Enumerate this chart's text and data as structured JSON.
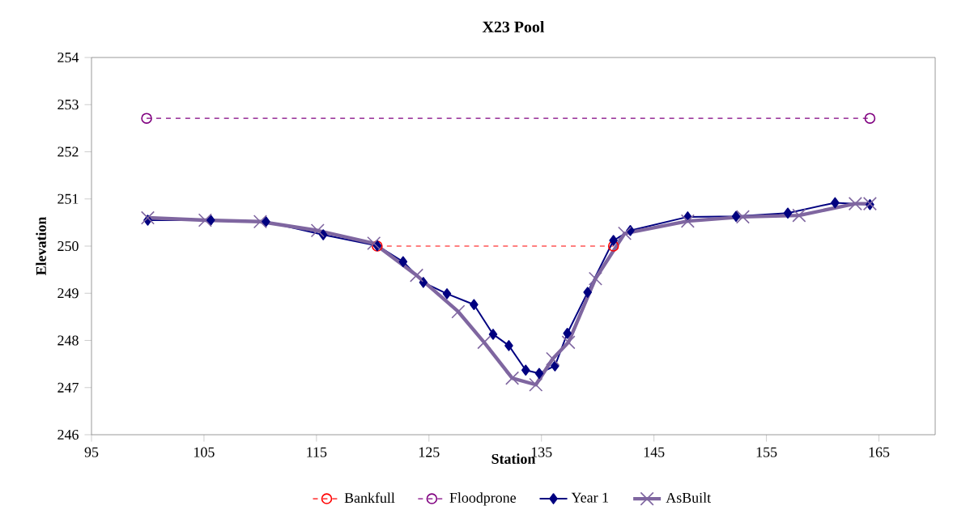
{
  "chart_data": {
    "type": "line",
    "title": "X23 Pool",
    "xlabel": "Station",
    "ylabel": "Elevation",
    "xlim": [
      95,
      170
    ],
    "ylim": [
      246,
      254
    ],
    "xticks": [
      95,
      105,
      115,
      125,
      135,
      145,
      155,
      165
    ],
    "yticks": [
      246,
      247,
      248,
      249,
      250,
      251,
      252,
      253,
      254
    ],
    "grid": false,
    "legend": "bottom",
    "series": [
      {
        "name": "Bankfull",
        "color": "#ff0000",
        "marker": "circle",
        "line_style": "dashed",
        "x": [
          120.4,
          141.4
        ],
        "values": [
          250.0,
          250.0
        ]
      },
      {
        "name": "Floodprone",
        "color": "#800080",
        "marker": "circle",
        "line_style": "dashed",
        "x": [
          99.9,
          164.2
        ],
        "values": [
          252.71,
          252.71
        ]
      },
      {
        "name": "Year 1",
        "color": "#000080",
        "marker": "diamond",
        "line_style": "solid",
        "x": [
          100.0,
          105.6,
          110.5,
          115.6,
          120.4,
          122.7,
          124.5,
          126.6,
          129.0,
          130.7,
          132.1,
          133.6,
          134.8,
          136.2,
          137.3,
          139.1,
          141.4,
          142.9,
          148.0,
          152.3,
          156.9,
          161.1,
          164.2
        ],
        "values": [
          250.55,
          250.55,
          250.52,
          250.24,
          250.01,
          249.67,
          249.23,
          248.99,
          248.76,
          248.13,
          247.89,
          247.37,
          247.3,
          247.46,
          248.15,
          249.02,
          250.12,
          250.33,
          250.62,
          250.63,
          250.7,
          250.92,
          250.88
        ]
      },
      {
        "name": "AsBuilt",
        "color": "#7f66a0",
        "marker": "cross",
        "line_style": "solid",
        "x": [
          100.0,
          105.1,
          110.0,
          115.1,
          120.1,
          123.9,
          127.6,
          129.9,
          132.4,
          134.5,
          136.0,
          137.4,
          139.8,
          142.4,
          148.0,
          152.9,
          157.9,
          162.9,
          164.2
        ],
        "values": [
          250.6,
          250.55,
          250.52,
          250.33,
          250.06,
          249.38,
          248.61,
          247.96,
          247.2,
          247.06,
          247.61,
          247.96,
          249.31,
          250.27,
          250.53,
          250.62,
          250.65,
          250.9,
          250.9
        ]
      }
    ]
  }
}
